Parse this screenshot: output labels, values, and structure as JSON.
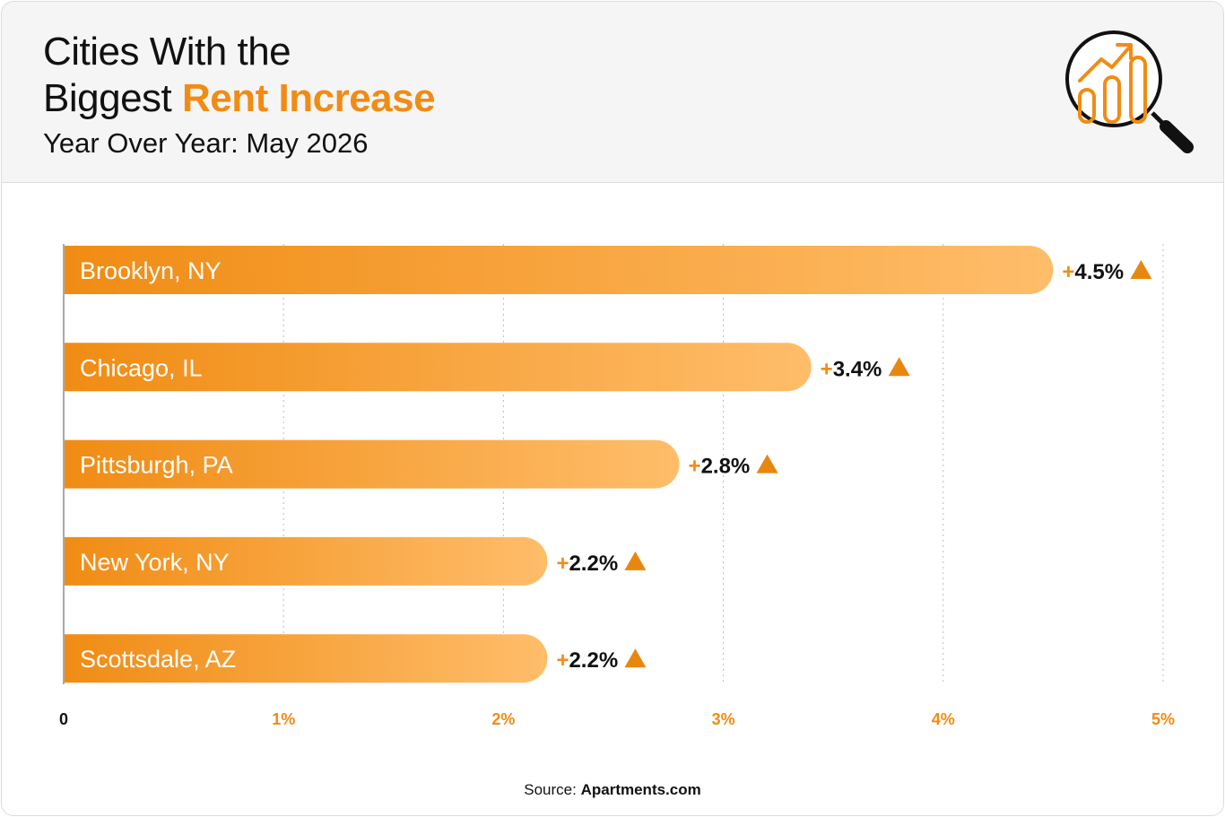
{
  "header": {
    "title_line1": "Cities With the",
    "title_line2_prefix": "Biggest",
    "title_line2_accent": "Rent Increase",
    "subtitle": "Year Over Year: May 2026",
    "icon": "magnifier-growth-chart-icon"
  },
  "colors": {
    "accent": "#f08c14",
    "bar_start": "#f08c14",
    "bar_end": "#ffbd6a",
    "arrow": "#e8870f"
  },
  "chart_data": {
    "type": "bar",
    "orientation": "horizontal",
    "categories": [
      "Brooklyn, NY",
      "Chicago, IL",
      "Pittsburgh, PA",
      "New York, NY",
      "Scottsdale, AZ"
    ],
    "values": [
      4.5,
      3.4,
      2.8,
      2.2,
      2.2
    ],
    "value_labels": [
      "+4.5%",
      "+3.4%",
      "+2.8%",
      "+2.2%",
      "+2.2%"
    ],
    "x_ticks": [
      0,
      1,
      2,
      3,
      4,
      5
    ],
    "x_tick_labels": [
      "0",
      "1%",
      "2%",
      "3%",
      "4%",
      "5%"
    ],
    "xlim": [
      0,
      5
    ],
    "grid": "vertical-dotted"
  },
  "footer": {
    "source_label": "Source:",
    "source_name": "Apartments.com"
  }
}
